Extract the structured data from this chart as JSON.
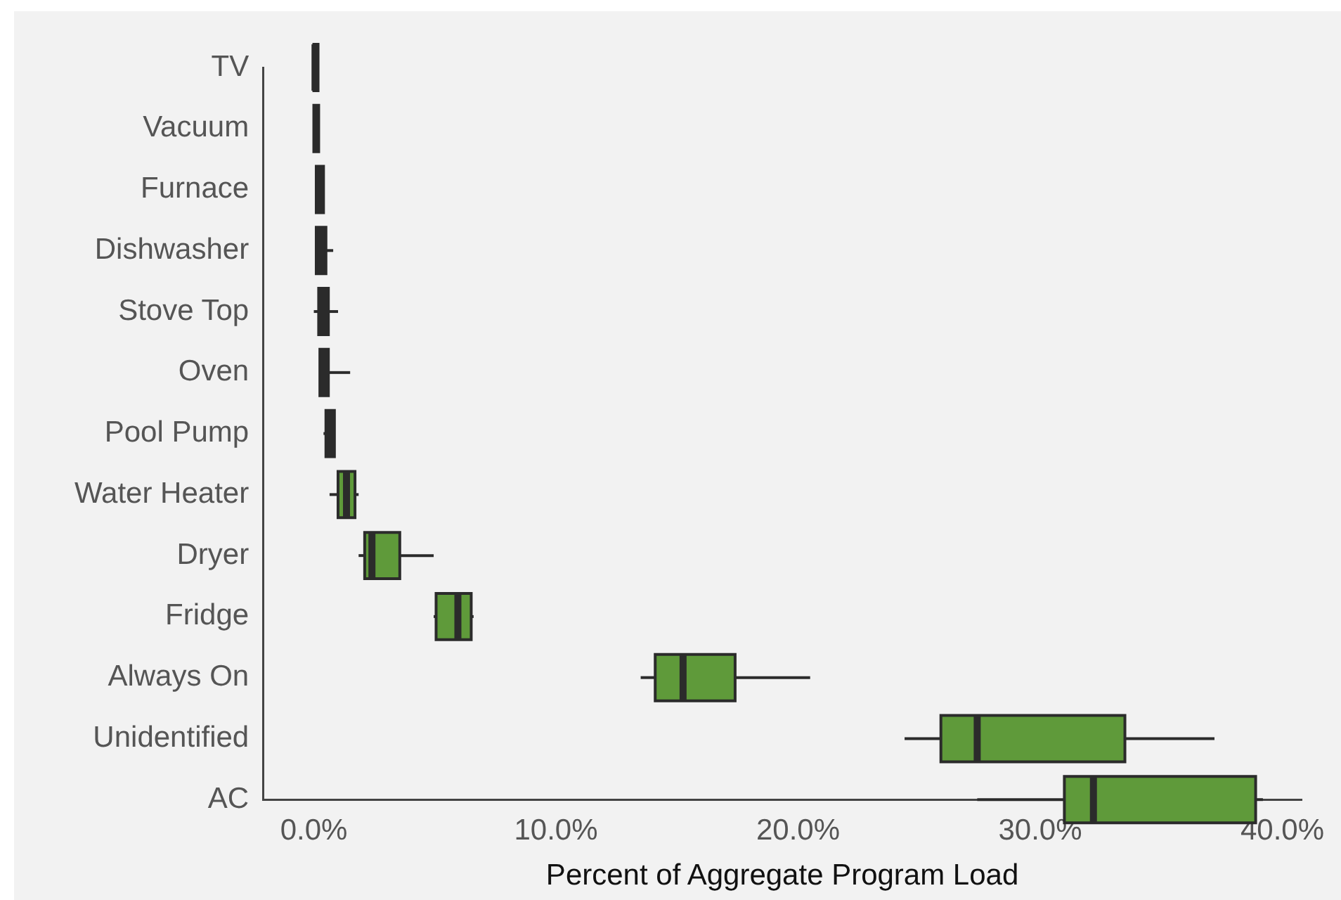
{
  "chart_data": {
    "type": "box",
    "orientation": "horizontal",
    "xlabel": "Percent of Aggregate Program Load",
    "categories": [
      "TV",
      "Vacuum",
      "Furnace",
      "Dishwasher",
      "Stove Top",
      "Oven",
      "Pool Pump",
      "Water Heater",
      "Dryer",
      "Fridge",
      "Always On",
      "Unidentified",
      "AC"
    ],
    "colors": [
      "#333333",
      "#333333",
      "#333333",
      "#333333",
      "#333333",
      "#333333",
      "#333333",
      "#5f9a3a",
      "#5f9a3a",
      "#5f9a3a",
      "#5f9a3a",
      "#5f9a3a",
      "#5f9a3a"
    ],
    "boxes": [
      {
        "low": 0,
        "q1": 0,
        "median": 0.05,
        "q3": 0.1,
        "high": 0.1
      },
      {
        "low": 0,
        "q1": 0,
        "median": 0.1,
        "q3": 0.2,
        "high": 0.2
      },
      {
        "low": 0.1,
        "q1": 0.1,
        "median": 0.25,
        "q3": 0.4,
        "high": 0.4
      },
      {
        "low": 0.1,
        "q1": 0.1,
        "median": 0.3,
        "q3": 0.5,
        "high": 0.8
      },
      {
        "low": 0,
        "q1": 0.2,
        "median": 0.4,
        "q3": 0.6,
        "high": 1
      },
      {
        "low": 0.25,
        "q1": 0.25,
        "median": 0.4,
        "q3": 0.6,
        "high": 1.5
      },
      {
        "low": 0.4,
        "q1": 0.5,
        "median": 0.7,
        "q3": 0.85,
        "high": 0.85
      },
      {
        "low": 0.65,
        "q1": 1,
        "median": 1.35,
        "q3": 1.7,
        "high": 1.85
      },
      {
        "low": 1.85,
        "q1": 2.1,
        "median": 2.4,
        "q3": 3.55,
        "high": 4.95
      },
      {
        "low": 4.95,
        "q1": 5.05,
        "median": 5.95,
        "q3": 6.5,
        "high": 6.6
      },
      {
        "low": 13.5,
        "q1": 14.1,
        "median": 15.25,
        "q3": 17.4,
        "high": 20.5
      },
      {
        "low": 24.4,
        "q1": 25.9,
        "median": 27.4,
        "q3": 33.5,
        "high": 37.2
      },
      {
        "low": 27.4,
        "q1": 31,
        "median": 32.2,
        "q3": 38.9,
        "high": 39.2
      }
    ],
    "xlim": [
      -2.1,
      40.8
    ],
    "xticks": [
      {
        "value": 0,
        "label": "0.0%"
      },
      {
        "value": 10,
        "label": "10.0%"
      },
      {
        "value": 20,
        "label": "20.0%"
      },
      {
        "value": 30,
        "label": "30.0%"
      },
      {
        "value": 40,
        "label": "40.0%"
      }
    ],
    "grid": false,
    "legend": false
  }
}
